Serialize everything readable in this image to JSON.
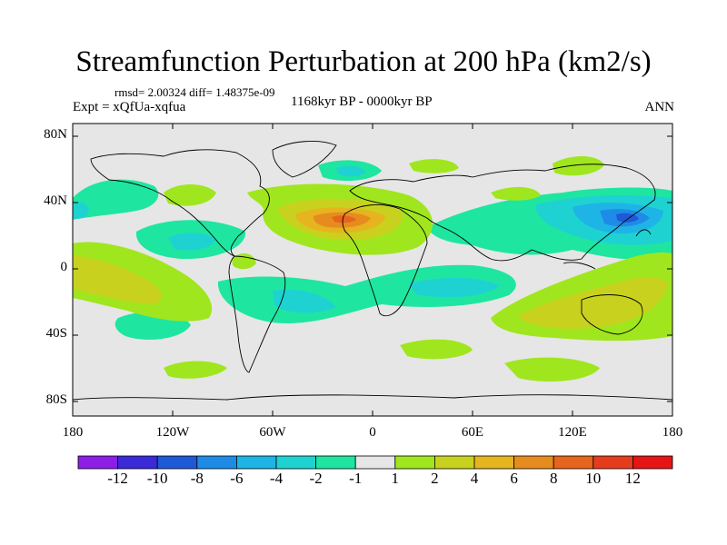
{
  "title": "Streamfunction Perturbation at 200 hPa (km2/s)",
  "stats": "rmsd= 2.00324 diff= 1.48375e-09",
  "expt": "Expt = xQfUa-xqfua",
  "period": "1168kyr BP - 0000kyr BP",
  "season": "ANN",
  "lat_labels": [
    "80N",
    "40N",
    "0",
    "40S",
    "80S"
  ],
  "lon_labels": [
    "180",
    "120W",
    "60W",
    "0",
    "60E",
    "120E",
    "180"
  ],
  "colorbar": {
    "labels": [
      "-12",
      "-10",
      "-8",
      "-6",
      "-4",
      "-2",
      "-1",
      "1",
      "2",
      "4",
      "6",
      "8",
      "10",
      "12"
    ],
    "colors": [
      "#8c1ee6",
      "#3a2ad8",
      "#1e5ad8",
      "#1e8ce6",
      "#1eb4e6",
      "#1ed2d2",
      "#1ee6a0",
      "#e6e6e6",
      "#a0e61e",
      "#c8d21e",
      "#e6b41e",
      "#e68c1e",
      "#e6641e",
      "#e63c1e",
      "#e61414"
    ]
  },
  "icons": {
    "map": "world-map-icon"
  }
}
